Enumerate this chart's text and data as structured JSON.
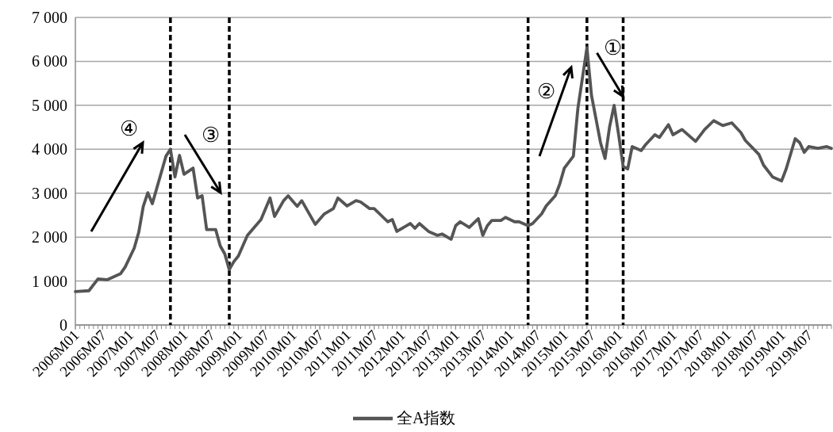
{
  "chart_data": {
    "type": "line",
    "x": [
      "2006-01",
      "2006-04",
      "2006-06",
      "2006-08",
      "2006-11",
      "2006-12",
      "2007-02",
      "2007-03",
      "2007-04",
      "2007-05",
      "2007-06",
      "2007-09",
      "2007-10",
      "2007-11",
      "2007-12",
      "2008-01",
      "2008-03",
      "2008-04",
      "2008-05",
      "2008-06",
      "2008-08",
      "2008-09",
      "2008-10",
      "2008-11",
      "2008-12",
      "2009-01",
      "2009-03",
      "2009-06",
      "2009-08",
      "2009-09",
      "2009-11",
      "2009-12",
      "2010-02",
      "2010-03",
      "2010-06",
      "2010-08",
      "2010-10",
      "2010-11",
      "2010-12",
      "2011-01",
      "2011-03",
      "2011-04",
      "2011-06",
      "2011-07",
      "2011-10",
      "2011-11",
      "2011-12",
      "2012-03",
      "2012-04",
      "2012-05",
      "2012-07",
      "2012-09",
      "2012-10",
      "2012-12",
      "2013-01",
      "2013-02",
      "2013-04",
      "2013-06",
      "2013-07",
      "2013-08",
      "2013-09",
      "2013-11",
      "2013-12",
      "2014-02",
      "2014-03",
      "2014-05",
      "2014-06",
      "2014-08",
      "2014-09",
      "2014-11",
      "2014-12",
      "2015-01",
      "2015-03",
      "2015-04",
      "2015-06",
      "2015-07",
      "2015-09",
      "2015-10",
      "2015-11",
      "2015-12",
      "2016-01",
      "2016-02",
      "2016-03",
      "2016-04",
      "2016-06",
      "2016-07",
      "2016-09",
      "2016-10",
      "2016-12",
      "2017-01",
      "2017-03",
      "2017-06",
      "2017-08",
      "2017-10",
      "2017-12",
      "2018-02",
      "2018-04",
      "2018-05",
      "2018-08",
      "2018-09",
      "2018-11",
      "2019-01",
      "2019-02",
      "2019-04",
      "2019-05",
      "2019-06",
      "2019-07",
      "2019-09",
      "2019-11",
      "2019-12"
    ],
    "series": [
      {
        "name": "全A指数",
        "color": "#555555",
        "values": [
          760,
          780,
          1050,
          1030,
          1170,
          1320,
          1750,
          2110,
          2700,
          3010,
          2760,
          3840,
          4000,
          3370,
          3860,
          3430,
          3570,
          2890,
          2940,
          2170,
          2170,
          1800,
          1620,
          1260,
          1440,
          1570,
          2040,
          2400,
          2890,
          2470,
          2830,
          2940,
          2700,
          2830,
          2290,
          2530,
          2650,
          2890,
          2800,
          2710,
          2830,
          2800,
          2650,
          2650,
          2350,
          2400,
          2130,
          2310,
          2200,
          2310,
          2130,
          2040,
          2070,
          1950,
          2260,
          2350,
          2220,
          2420,
          2040,
          2260,
          2380,
          2380,
          2450,
          2350,
          2350,
          2260,
          2310,
          2530,
          2710,
          2940,
          3210,
          3570,
          3840,
          4930,
          6310,
          5230,
          4150,
          3790,
          4510,
          5000,
          4330,
          3610,
          3550,
          4060,
          3970,
          4110,
          4330,
          4270,
          4560,
          4330,
          4450,
          4180,
          4450,
          4650,
          4540,
          4600,
          4380,
          4200,
          3880,
          3640,
          3370,
          3280,
          3550,
          4240,
          4150,
          3930,
          4060,
          4020,
          4060,
          4020
        ]
      }
    ],
    "xlim": [
      "2006-01",
      "2019-12"
    ],
    "xticks": [
      {
        "value": "2006-01",
        "label": "2006M01"
      },
      {
        "value": "2006-07",
        "label": "2006M07"
      },
      {
        "value": "2007-01",
        "label": "2007M01"
      },
      {
        "value": "2007-07",
        "label": "2007M07"
      },
      {
        "value": "2008-01",
        "label": "2008M01"
      },
      {
        "value": "2008-07",
        "label": "2008M07"
      },
      {
        "value": "2009-01",
        "label": "2009M01"
      },
      {
        "value": "2009-07",
        "label": "2009M07"
      },
      {
        "value": "2010-01",
        "label": "2010M01"
      },
      {
        "value": "2010-07",
        "label": "2010M07"
      },
      {
        "value": "2011-01",
        "label": "2011M01"
      },
      {
        "value": "2011-07",
        "label": "2011M07"
      },
      {
        "value": "2012-01",
        "label": "2012M01"
      },
      {
        "value": "2012-07",
        "label": "2012M07"
      },
      {
        "value": "2013-01",
        "label": "2013M01"
      },
      {
        "value": "2013-07",
        "label": "2013M07"
      },
      {
        "value": "2014-01",
        "label": "2014M01"
      },
      {
        "value": "2014-07",
        "label": "2014M07"
      },
      {
        "value": "2015-01",
        "label": "2015M01"
      },
      {
        "value": "2015-07",
        "label": "2015M07"
      },
      {
        "value": "2016-01",
        "label": "2016M01"
      },
      {
        "value": "2016-07",
        "label": "2016M07"
      },
      {
        "value": "2017-01",
        "label": "2017M01"
      },
      {
        "value": "2017-07",
        "label": "2017M07"
      },
      {
        "value": "2018-01",
        "label": "2018M01"
      },
      {
        "value": "2018-07",
        "label": "2018M07"
      },
      {
        "value": "2019-01",
        "label": "2019M01"
      },
      {
        "value": "2019-07",
        "label": "2019M07"
      }
    ],
    "ylim": [
      0,
      7000
    ],
    "yticks": [
      0,
      {
        "value": 1000,
        "label": "1 000"
      },
      {
        "value": 2000,
        "label": "2 000"
      },
      {
        "value": 3000,
        "label": "3 000"
      },
      {
        "value": 4000,
        "label": "4 000"
      },
      {
        "value": 5000,
        "label": "5 000"
      },
      {
        "value": 6000,
        "label": "6 000"
      },
      {
        "value": 7000,
        "label": "7 000"
      }
    ],
    "grid": "y",
    "legend": "bottom",
    "ref_lines": [
      {
        "axis": "x",
        "value": "2007-10",
        "color": "#000000",
        "line_style": "dashed"
      },
      {
        "axis": "x",
        "value": "2008-11",
        "color": "#000000",
        "line_style": "dashed"
      },
      {
        "axis": "x",
        "value": "2014-05",
        "color": "#000000",
        "line_style": "dashed"
      },
      {
        "axis": "x",
        "value": "2015-06",
        "color": "#000000",
        "line_style": "dashed"
      },
      {
        "axis": "x",
        "value": "2016-02",
        "color": "#000000",
        "line_style": "dashed"
      }
    ],
    "annotations": [
      "④",
      "③",
      "②",
      {
        "text": "①",
        "x": "2016-02",
        "y": 5200
      }
    ]
  }
}
